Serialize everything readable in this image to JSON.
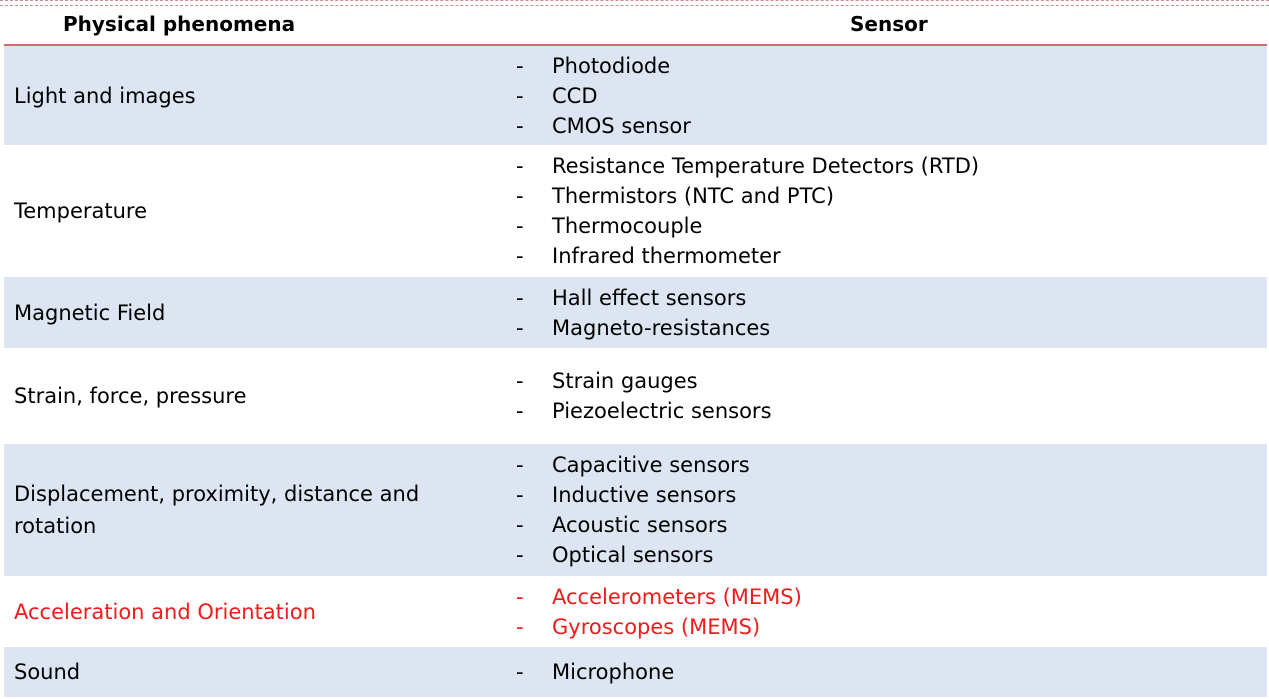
{
  "header": {
    "col1": "Physical phenomena",
    "col2": "Sensor"
  },
  "rows": [
    {
      "phenomenon": "Light and images",
      "sensors": [
        "Photodiode",
        "CCD",
        "CMOS sensor"
      ],
      "shaded": true
    },
    {
      "phenomenon": "Temperature",
      "sensors": [
        "Resistance Temperature Detectors (RTD)",
        "Thermistors (NTC and PTC)",
        "Thermocouple",
        "Infrared thermometer"
      ],
      "shaded": false
    },
    {
      "phenomenon": "Magnetic Field",
      "sensors": [
        "Hall effect sensors",
        "Magneto-resistances"
      ],
      "shaded": true
    },
    {
      "phenomenon": "Strain, force, pressure",
      "sensors": [
        "Strain gauges",
        "Piezoelectric sensors"
      ],
      "shaded": false
    },
    {
      "phenomenon": "Displacement, proximity, distance and rotation",
      "sensors": [
        "Capacitive sensors",
        "Inductive sensors",
        "Acoustic sensors",
        "Optical sensors"
      ],
      "shaded": true
    },
    {
      "phenomenon": "Acceleration and Orientation",
      "sensors": [
        "Accelerometers (MEMS)",
        "Gyroscopes (MEMS)"
      ],
      "shaded": false,
      "highlight": true
    },
    {
      "phenomenon": "Sound",
      "sensors": [
        "Microphone"
      ],
      "shaded": true
    }
  ],
  "bullet": "-",
  "colors": {
    "row_shade": "#dce5f1",
    "header_rule": "#d9666b",
    "highlight_text": "#ee1c1c"
  }
}
